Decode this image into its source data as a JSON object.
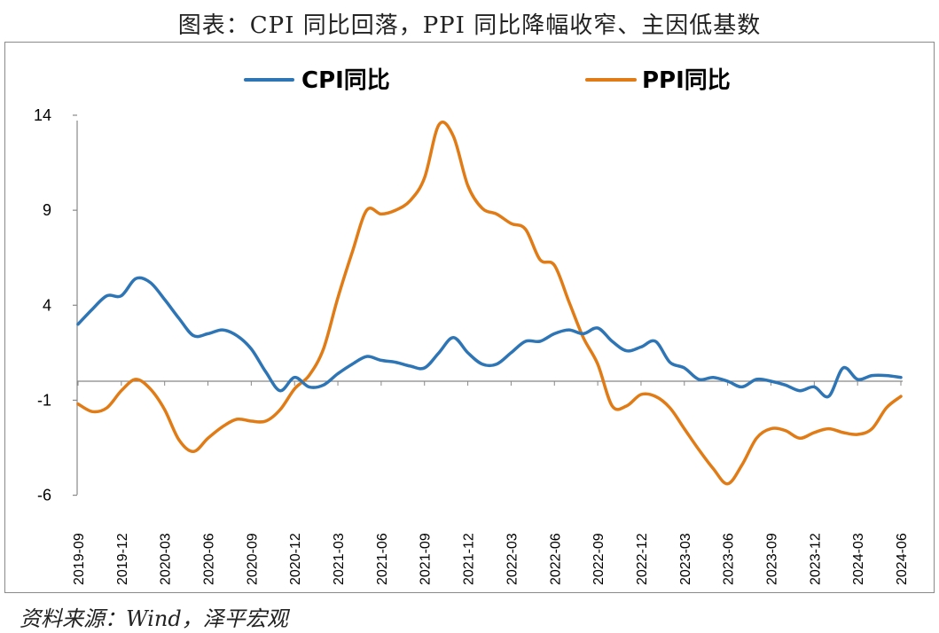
{
  "title": "图表：CPI 同比回落，PPI 同比降幅收窄、主因低基数",
  "source": "资料来源：Wind，泽平宏观",
  "chart_data": {
    "type": "line",
    "x": [
      "2019-09",
      "2019-10",
      "2019-11",
      "2019-12",
      "2020-01",
      "2020-02",
      "2020-03",
      "2020-04",
      "2020-05",
      "2020-06",
      "2020-07",
      "2020-08",
      "2020-09",
      "2020-10",
      "2020-11",
      "2020-12",
      "2021-01",
      "2021-02",
      "2021-03",
      "2021-04",
      "2021-05",
      "2021-06",
      "2021-07",
      "2021-08",
      "2021-09",
      "2021-10",
      "2021-11",
      "2021-12",
      "2022-01",
      "2022-02",
      "2022-03",
      "2022-04",
      "2022-05",
      "2022-06",
      "2022-07",
      "2022-08",
      "2022-09",
      "2022-10",
      "2022-11",
      "2022-12",
      "2023-01",
      "2023-02",
      "2023-03",
      "2023-04",
      "2023-05",
      "2023-06",
      "2023-07",
      "2023-08",
      "2023-09",
      "2023-10",
      "2023-11",
      "2023-12",
      "2024-01",
      "2024-02",
      "2024-03",
      "2024-04",
      "2024-05",
      "2024-06"
    ],
    "x_tick_labels": [
      "2019-09",
      "2019-12",
      "2020-03",
      "2020-06",
      "2020-09",
      "2020-12",
      "2021-03",
      "2021-06",
      "2021-09",
      "2021-12",
      "2022-03",
      "2022-06",
      "2022-09",
      "2022-12",
      "2023-03",
      "2023-06",
      "2023-09",
      "2023-12",
      "2024-03",
      "2024-06"
    ],
    "y_ticks": [
      14,
      9,
      4,
      -1,
      -6
    ],
    "ylim": [
      -6,
      15
    ],
    "grid": false,
    "legend_position": "top",
    "series": [
      {
        "name": "CPI同比",
        "color": "#2E75B6",
        "values": [
          3.0,
          3.8,
          4.5,
          4.5,
          5.4,
          5.2,
          4.3,
          3.3,
          2.4,
          2.5,
          2.7,
          2.4,
          1.7,
          0.5,
          -0.5,
          0.2,
          -0.3,
          -0.2,
          0.4,
          0.9,
          1.3,
          1.1,
          1.0,
          0.8,
          0.7,
          1.5,
          2.3,
          1.5,
          0.9,
          0.9,
          1.5,
          2.1,
          2.1,
          2.5,
          2.7,
          2.5,
          2.8,
          2.1,
          1.6,
          1.8,
          2.1,
          1.0,
          0.7,
          0.1,
          0.2,
          0.0,
          -0.3,
          0.1,
          0.0,
          -0.2,
          -0.5,
          -0.3,
          -0.8,
          0.7,
          0.1,
          0.3,
          0.3,
          0.2
        ]
      },
      {
        "name": "PPI同比",
        "color": "#E07B16",
        "values": [
          -1.2,
          -1.6,
          -1.4,
          -0.5,
          0.1,
          -0.4,
          -1.5,
          -3.1,
          -3.7,
          -3.0,
          -2.4,
          -2.0,
          -2.1,
          -2.1,
          -1.5,
          -0.4,
          0.3,
          1.7,
          4.4,
          6.8,
          9.0,
          8.8,
          9.0,
          9.5,
          10.7,
          13.5,
          12.9,
          10.3,
          9.1,
          8.8,
          8.3,
          8.0,
          6.4,
          6.1,
          4.2,
          2.3,
          0.9,
          -1.3,
          -1.3,
          -0.7,
          -0.8,
          -1.4,
          -2.5,
          -3.6,
          -4.6,
          -5.4,
          -4.4,
          -3.0,
          -2.5,
          -2.6,
          -3.0,
          -2.7,
          -2.5,
          -2.7,
          -2.8,
          -2.5,
          -1.4,
          -0.8
        ]
      }
    ]
  }
}
